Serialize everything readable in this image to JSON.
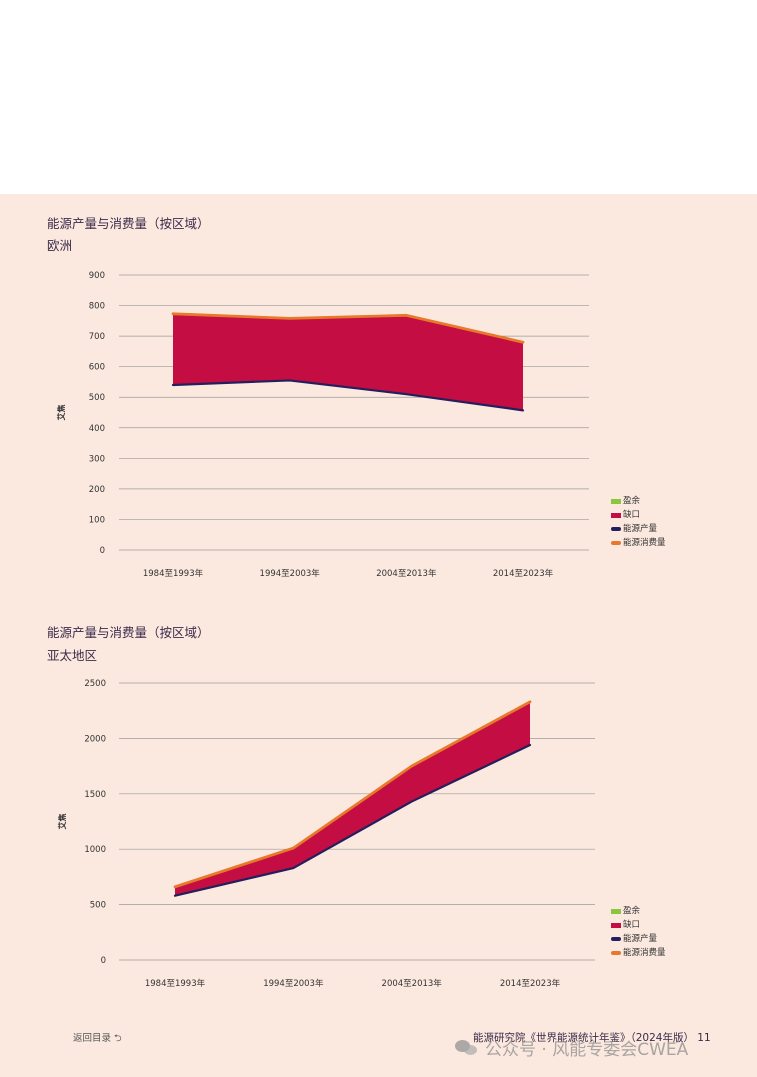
{
  "colors": {
    "surplus": "#8cc63f",
    "deficit": "#c40d42",
    "production": "#231f5e",
    "consumption": "#e8782a",
    "grid": "#9a9a9a",
    "background": "#fbe9df"
  },
  "legend": {
    "surplus": "盈余",
    "deficit": "缺口",
    "production": "能源产量",
    "consumption": "能源消费量"
  },
  "chart_data": [
    {
      "type": "area",
      "title": "能源产量与消费量（按区域）",
      "subtitle": "欧洲",
      "ylabel": "艾焦",
      "ylim": [
        0,
        900
      ],
      "yticks": [
        0,
        100,
        200,
        300,
        400,
        500,
        600,
        700,
        800,
        900
      ],
      "categories": [
        "1984至1993年",
        "1994至2003年",
        "2004至2013年",
        "2014至2023年"
      ],
      "grid": true,
      "legend_position": "bottom-right",
      "series": [
        {
          "name": "能源产量",
          "values": [
            540,
            555,
            510,
            457
          ]
        },
        {
          "name": "能源消费量",
          "values": [
            773,
            758,
            768,
            680
          ]
        }
      ]
    },
    {
      "type": "area",
      "title": "能源产量与消费量（按区域）",
      "subtitle": "亚太地区",
      "ylabel": "艾焦",
      "ylim": [
        0,
        2500
      ],
      "yticks": [
        0,
        500,
        1000,
        1500,
        2000,
        2500
      ],
      "categories": [
        "1984至1993年",
        "1994至2003年",
        "2004至2013年",
        "2014至2023年"
      ],
      "grid": true,
      "legend_position": "bottom-right",
      "series": [
        {
          "name": "能源产量",
          "values": [
            580,
            830,
            1430,
            1940
          ]
        },
        {
          "name": "能源消费量",
          "values": [
            660,
            1010,
            1750,
            2330
          ]
        }
      ]
    }
  ],
  "footer": {
    "back": "返回目录 ⮌",
    "source": "能源研究院《世界能源统计年鉴》（2024年版） 11",
    "watermark": "公众号 · 风能专委会CWEA"
  }
}
